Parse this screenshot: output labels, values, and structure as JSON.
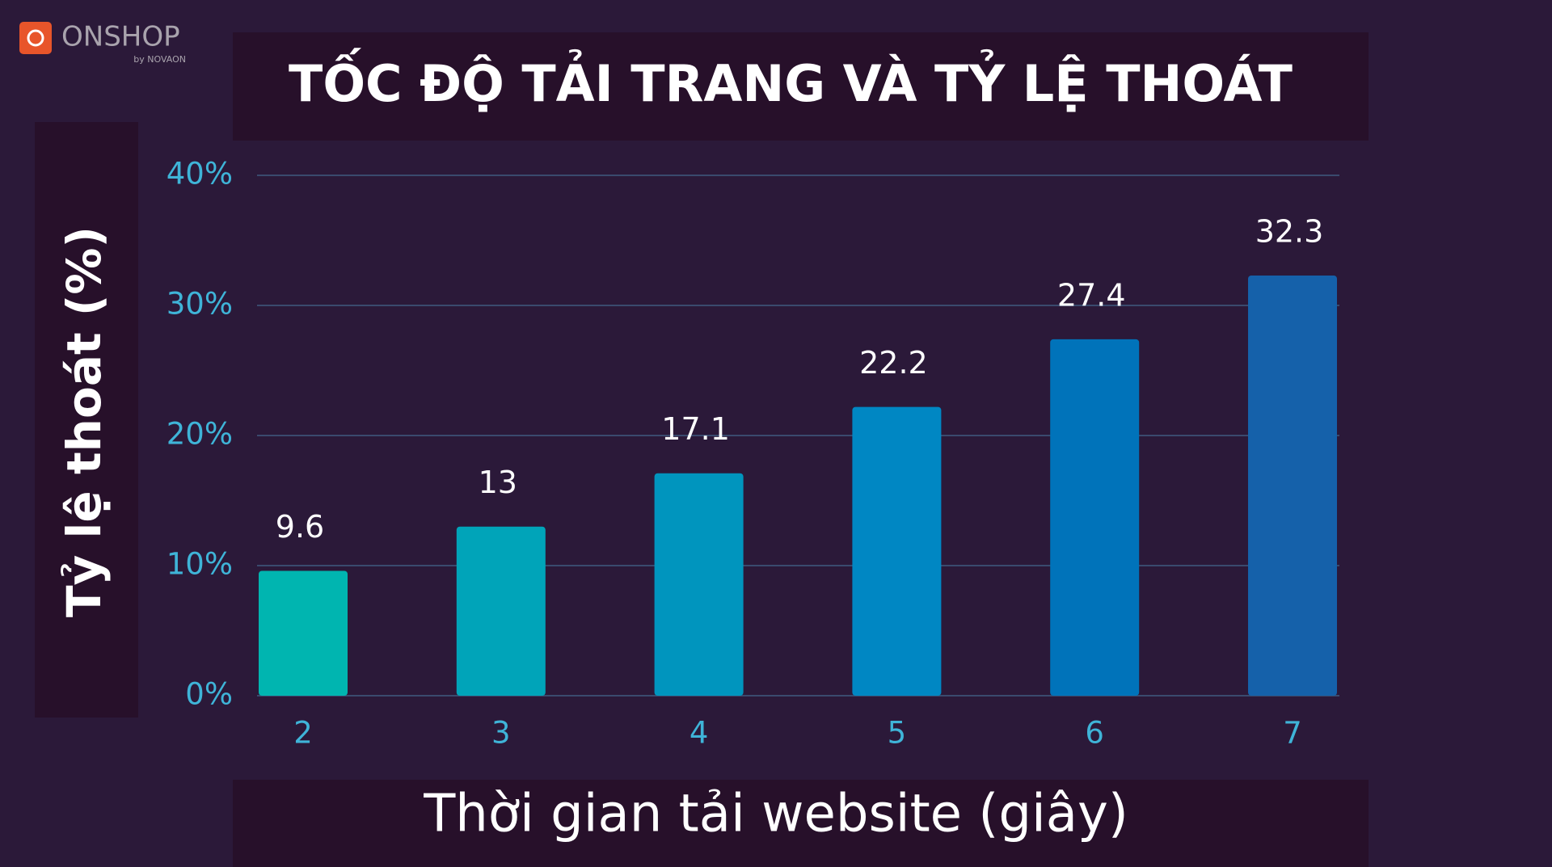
{
  "logo": {
    "name": "ONSHOP",
    "tagline": "by NOVAON"
  },
  "chart_data": {
    "type": "bar",
    "title": "TỐC ĐỘ TẢI TRANG VÀ TỶ LỆ THOÁT",
    "x_label": "Thời gian tải website (giây)",
    "y_label": "Tỷ lệ thoát (%)",
    "categories": [
      "2",
      "3",
      "4",
      "5",
      "6",
      "7"
    ],
    "values": [
      9.6,
      13,
      17.1,
      22.2,
      27.4,
      32.3
    ],
    "colors": [
      "#00b5b0",
      "#00a4b9",
      "#0095be",
      "#0087c3",
      "#0073ba",
      "#1561aa"
    ],
    "ylim": [
      0,
      40
    ],
    "yticks": [
      {
        "value": 0,
        "label": "0%"
      },
      {
        "value": 10,
        "label": "10%"
      },
      {
        "value": 20,
        "label": "20%"
      },
      {
        "value": 30,
        "label": "30%"
      },
      {
        "value": 40,
        "label": "40%"
      }
    ],
    "grid": true
  }
}
